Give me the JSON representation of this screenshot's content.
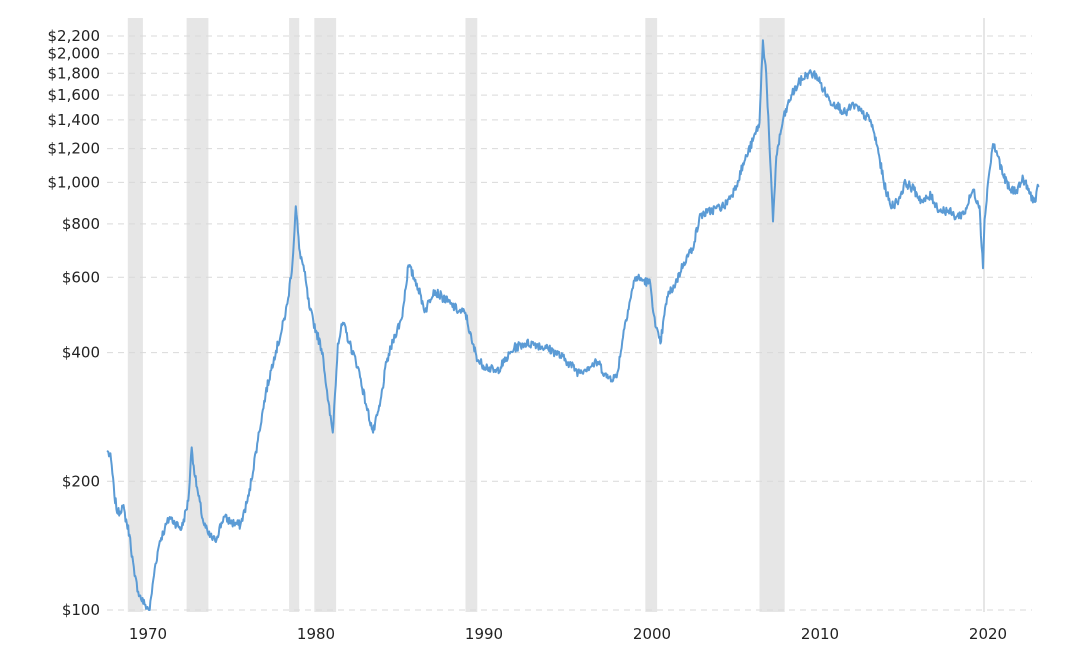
{
  "chart_data": {
    "type": "line",
    "title": "",
    "xlabel": "",
    "ylabel": "",
    "yscale": "log",
    "ylim": [
      100,
      2200
    ],
    "xlim": [
      1967.6,
      2023.0
    ],
    "grid": true,
    "y_ticks": [
      {
        "value": 100,
        "label": "$100"
      },
      {
        "value": 200,
        "label": "$200"
      },
      {
        "value": 400,
        "label": "$400"
      },
      {
        "value": 600,
        "label": "$600"
      },
      {
        "value": 800,
        "label": "$800"
      },
      {
        "value": 1000,
        "label": "$1,000"
      },
      {
        "value": 1200,
        "label": "$1,200"
      },
      {
        "value": 1400,
        "label": "$1,400"
      },
      {
        "value": 1600,
        "label": "$1,600"
      },
      {
        "value": 1800,
        "label": "$1,800"
      },
      {
        "value": 2000,
        "label": "$2,000"
      },
      {
        "value": 2200,
        "label": "$2,200"
      }
    ],
    "x_ticks": [
      {
        "value": 1970,
        "label": "1970"
      },
      {
        "value": 1980,
        "label": "1980"
      },
      {
        "value": 1990,
        "label": "1990"
      },
      {
        "value": 2000,
        "label": "2000"
      },
      {
        "value": 2010,
        "label": "2010"
      },
      {
        "value": 2020,
        "label": "2020"
      }
    ],
    "shaded_periods": [
      [
        1968.8,
        1969.7
      ],
      [
        1972.3,
        1973.6
      ],
      [
        1978.4,
        1979.0
      ],
      [
        1979.9,
        1981.2
      ],
      [
        1988.9,
        1989.6
      ],
      [
        1999.6,
        2000.3
      ],
      [
        2006.4,
        2007.9
      ],
      [
        2019.7,
        2019.8
      ]
    ],
    "colors": {
      "series": "#5b9bd5",
      "band": "#e6e6e6",
      "grid": "#d9d9d9"
    },
    "series": [
      {
        "x": [
          1967.6,
          1967.8,
          1968.0,
          1968.2,
          1968.5,
          1968.9,
          1969.2,
          1969.5,
          1969.8,
          1970.1,
          1970.4,
          1970.7,
          1971.0,
          1971.3,
          1971.6,
          1972.0,
          1972.4,
          1972.6,
          1972.8,
          1973.0,
          1973.3,
          1973.6,
          1974.0,
          1974.5,
          1975.0,
          1975.5,
          1976.0,
          1976.5,
          1977.0,
          1977.5,
          1977.9,
          1978.3,
          1978.6,
          1978.8,
          1979.0,
          1979.3,
          1979.6,
          1980.0,
          1980.4,
          1980.7,
          1981.0,
          1981.3,
          1981.6,
          1982.0,
          1982.5,
          1983.0,
          1983.4,
          1983.8,
          1984.2,
          1984.7,
          1985.1,
          1985.5,
          1986.0,
          1986.5,
          1987.0,
          1987.5,
          1988.0,
          1988.5,
          1988.9,
          1989.3,
          1989.7,
          1990.2,
          1990.7,
          1991.2,
          1991.8,
          1992.4,
          1993.0,
          1993.7,
          1994.3,
          1995.0,
          1995.6,
          1996.2,
          1996.8,
          1997.3,
          1997.9,
          1998.4,
          1999.0,
          1999.5,
          1999.9,
          2000.2,
          2000.5,
          2000.9,
          2001.4,
          2001.9,
          2002.4,
          2002.9,
          2003.3,
          2003.8,
          2004.3,
          2004.9,
          2005.5,
          2006.0,
          2006.4,
          2006.6,
          2006.8,
          2007.0,
          2007.2,
          2007.4,
          2007.8,
          2008.3,
          2008.8,
          2009.3,
          2009.8,
          2010.2,
          2010.6,
          2011.0,
          2011.5,
          2012.0,
          2012.5,
          2013.0,
          2013.4,
          2013.8,
          2014.2,
          2014.6,
          2015.1,
          2015.6,
          2016.1,
          2016.6,
          2017.1,
          2017.6,
          2018.1,
          2018.6,
          2019.1,
          2019.5,
          2019.7,
          2019.8,
          2020.0,
          2020.3,
          2020.6,
          2020.9,
          2021.3,
          2021.7,
          2022.1,
          2022.5,
          2022.8,
          2023.0
        ],
        "values": [
          235,
          225,
          185,
          168,
          175,
          150,
          120,
          108,
          103,
          100,
          125,
          145,
          155,
          165,
          160,
          155,
          180,
          240,
          205,
          185,
          160,
          150,
          145,
          165,
          160,
          158,
          185,
          245,
          320,
          390,
          440,
          520,
          650,
          880,
          700,
          620,
          510,
          450,
          400,
          310,
          260,
          420,
          470,
          420,
          370,
          300,
          260,
          300,
          380,
          440,
          480,
          640,
          580,
          500,
          560,
          540,
          520,
          500,
          495,
          420,
          380,
          370,
          360,
          380,
          410,
          420,
          420,
          410,
          400,
          380,
          360,
          370,
          380,
          350,
          350,
          470,
          600,
          590,
          580,
          460,
          420,
          540,
          580,
          650,
          700,
          840,
          850,
          870,
          880,
          960,
          1120,
          1250,
          1380,
          2150,
          1800,
          1200,
          810,
          1150,
          1400,
          1600,
          1720,
          1800,
          1780,
          1650,
          1550,
          1520,
          1450,
          1520,
          1450,
          1400,
          1220,
          1000,
          880,
          900,
          1000,
          960,
          900,
          930,
          860,
          860,
          830,
          850,
          960,
          880,
          630,
          820,
          1000,
          1230,
          1150,
          1040,
          960,
          960,
          1020,
          940,
          900,
          980
        ]
      }
    ]
  }
}
